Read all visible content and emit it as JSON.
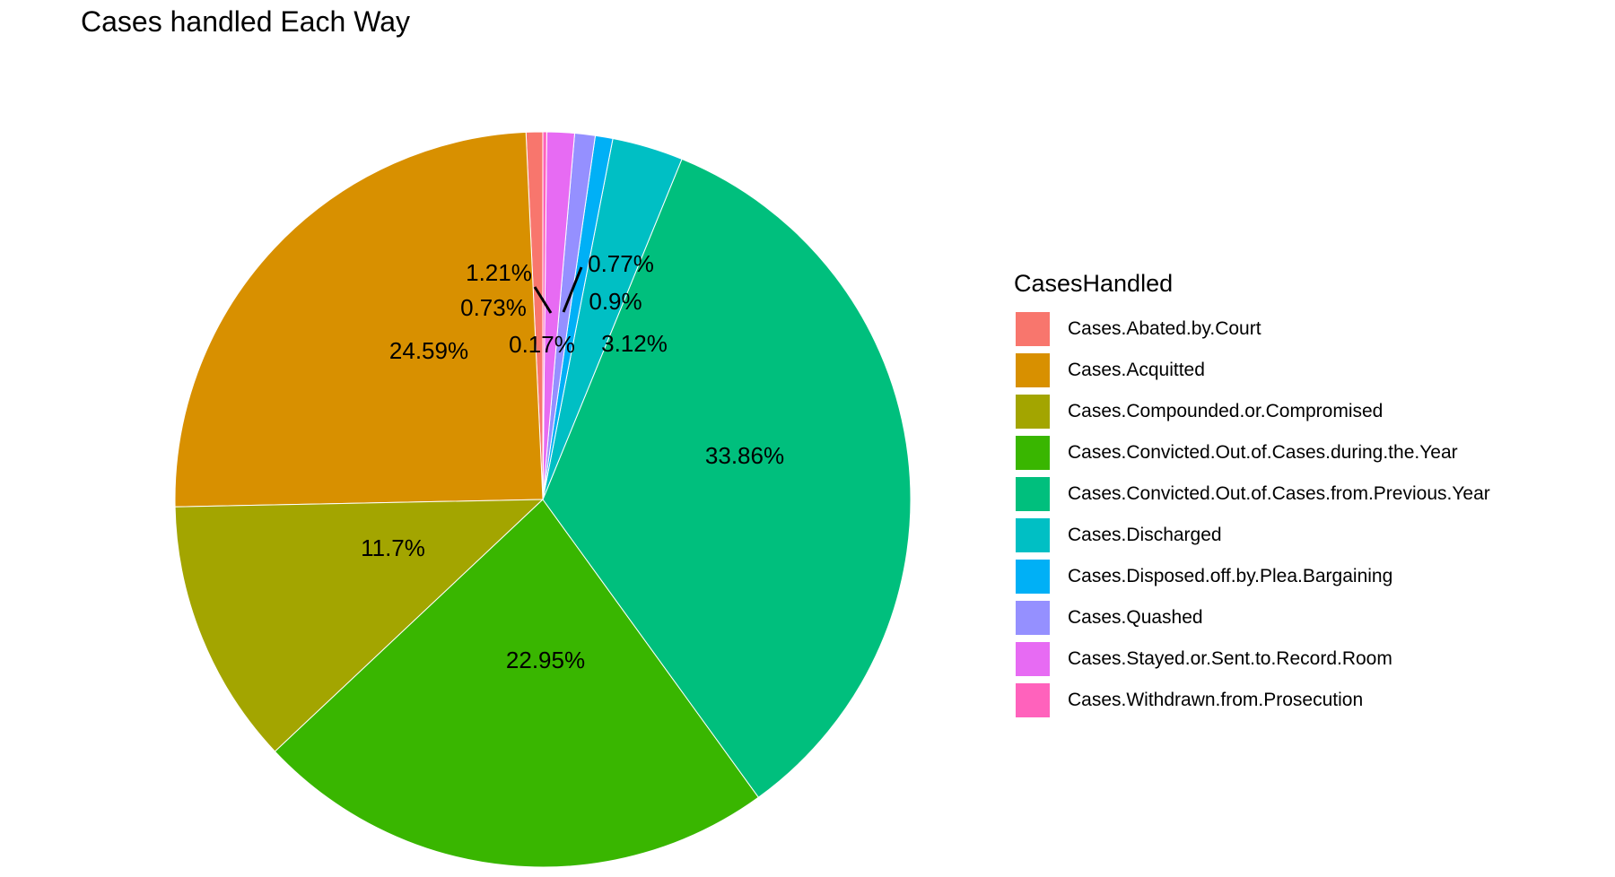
{
  "chart_data": {
    "type": "pie",
    "title": "Cases handled Each Way",
    "legend_title": "CasesHandled",
    "legend_position": "right",
    "categories": [
      "Cases.Abated.by.Court",
      "Cases.Acquitted",
      "Cases.Compounded.or.Compromised",
      "Cases.Convicted.Out.of.Cases.during.the.Year",
      "Cases.Convicted.Out.of.Cases.from.Previous.Year",
      "Cases.Discharged",
      "Cases.Disposed.off.by.Plea.Bargaining",
      "Cases.Quashed",
      "Cases.Stayed.or.Sent.to.Record.Room",
      "Cases.Withdrawn.from.Prosecution"
    ],
    "values": [
      0.73,
      24.59,
      11.7,
      22.95,
      33.86,
      3.12,
      0.77,
      0.9,
      1.21,
      0.17
    ],
    "labels": [
      "0.73%",
      "24.59%",
      "11.7%",
      "22.95%",
      "33.86%",
      "3.12%",
      "0.77%",
      "0.9%",
      "1.21%",
      "0.17%"
    ],
    "colors": [
      "#F8766D",
      "#D89000",
      "#A3A500",
      "#39B600",
      "#00BF7D",
      "#00BFC4",
      "#00B0F6",
      "#9590FF",
      "#E76BF3",
      "#FF62BC"
    ]
  }
}
